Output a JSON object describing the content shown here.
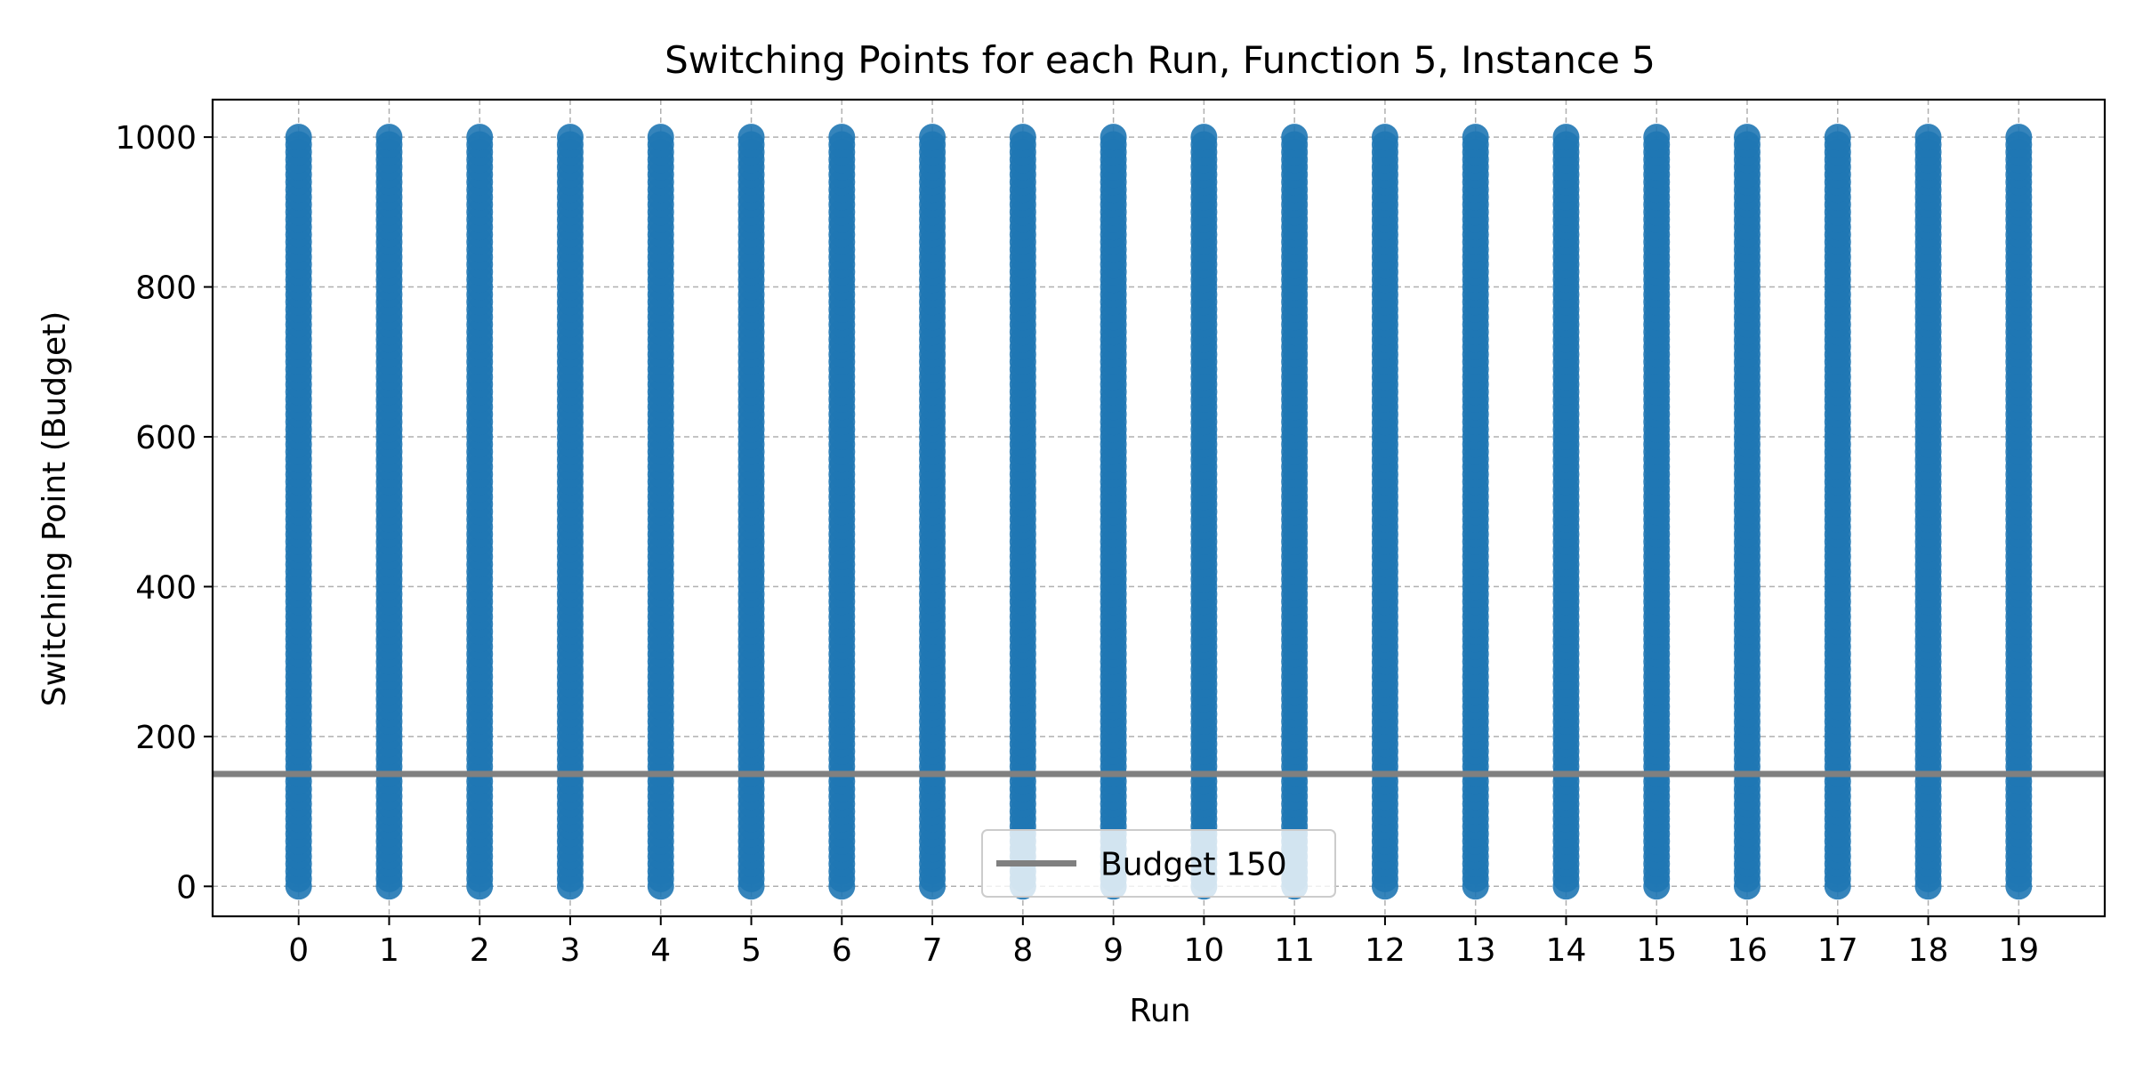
{
  "chart_data": {
    "type": "scatter",
    "title": "Switching Points for each Run, Function 5, Instance 5",
    "xlabel": "Run",
    "ylabel": "Switching Point (Budget)",
    "xlim": [
      -0.95,
      19.95
    ],
    "ylim": [
      -40,
      1050
    ],
    "x_ticks": [
      0,
      1,
      2,
      3,
      4,
      5,
      6,
      7,
      8,
      9,
      10,
      11,
      12,
      13,
      14,
      15,
      16,
      17,
      18,
      19
    ],
    "y_ticks": [
      0,
      200,
      400,
      600,
      800,
      1000
    ],
    "grid": true,
    "legend_position": "lower center",
    "series": [
      {
        "kind": "points",
        "x": [
          0,
          1,
          2,
          3,
          4,
          5,
          6,
          7,
          8,
          9,
          10,
          11,
          12,
          13,
          14,
          15,
          16,
          17,
          18,
          19
        ],
        "y_range": [
          0,
          1000
        ],
        "y_step": 10,
        "color": "#1f77b4"
      },
      {
        "kind": "hline",
        "name": "Budget 150",
        "y": 150,
        "color": "#808080"
      }
    ]
  }
}
